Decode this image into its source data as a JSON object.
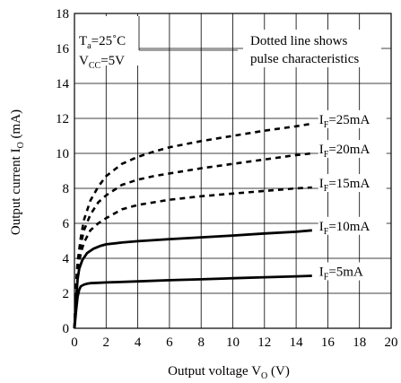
{
  "chart_data": {
    "type": "line",
    "title": "",
    "xlabel": "Output voltage V",
    "xlabel_sub": "O",
    "xlabel_unit": " (V)",
    "ylabel": "Output current I",
    "ylabel_sub": "O",
    "ylabel_unit": " (mA)",
    "xlim": [
      0,
      20
    ],
    "ylim": [
      0,
      18
    ],
    "xticks": [
      0,
      2,
      4,
      6,
      8,
      10,
      12,
      14,
      16,
      18,
      20
    ],
    "yticks": [
      0,
      2,
      4,
      6,
      8,
      10,
      12,
      14,
      16,
      18
    ],
    "grid": true,
    "conditions": {
      "ta_main": "T",
      "ta_sub": "a",
      "ta_value": "=25˚C",
      "vcc_main": "V",
      "vcc_sub": "CC",
      "vcc_value": "=5V"
    },
    "note_line1": "Dotted line shows",
    "note_line2": "pulse characteristics",
    "series": [
      {
        "label_main": "I",
        "label_sub": "F",
        "label_value": "=25mA",
        "style": "dotted",
        "x": [
          0,
          0.1,
          0.2,
          0.4,
          0.6,
          1,
          1.5,
          2,
          3,
          4,
          5,
          6,
          8,
          10,
          12,
          14,
          15
        ],
        "y": [
          0,
          2.5,
          3.8,
          5.2,
          6.2,
          7.3,
          8.1,
          8.7,
          9.4,
          9.8,
          10.1,
          10.35,
          10.7,
          11.0,
          11.3,
          11.55,
          11.7
        ]
      },
      {
        "label_main": "I",
        "label_sub": "F",
        "label_value": "=20mA",
        "style": "dotted",
        "x": [
          0,
          0.1,
          0.2,
          0.4,
          0.6,
          1,
          1.5,
          2,
          3,
          4,
          5,
          6,
          8,
          10,
          12,
          14,
          15
        ],
        "y": [
          0,
          2.3,
          3.6,
          4.8,
          5.6,
          6.5,
          7.2,
          7.6,
          8.2,
          8.5,
          8.7,
          8.85,
          9.15,
          9.4,
          9.65,
          9.9,
          10.0
        ]
      },
      {
        "label_main": "I",
        "label_sub": "F",
        "label_value": "=15mA",
        "style": "dotted",
        "x": [
          0,
          0.1,
          0.2,
          0.4,
          0.6,
          1,
          1.5,
          2,
          3,
          4,
          5,
          6,
          8,
          10,
          12,
          14,
          15
        ],
        "y": [
          0,
          2.1,
          3.3,
          4.3,
          4.9,
          5.6,
          6.0,
          6.3,
          6.8,
          7.05,
          7.2,
          7.35,
          7.55,
          7.7,
          7.85,
          8.0,
          8.05
        ]
      },
      {
        "label_main": "I",
        "label_sub": "F",
        "label_value": "=10mA",
        "style": "solid",
        "x": [
          0,
          0.1,
          0.2,
          0.3,
          0.5,
          0.8,
          1.2,
          1.6,
          2,
          3,
          4,
          6,
          8,
          10,
          12,
          14,
          15
        ],
        "y": [
          0,
          1.6,
          2.8,
          3.4,
          3.9,
          4.3,
          4.55,
          4.7,
          4.8,
          4.9,
          4.98,
          5.1,
          5.2,
          5.3,
          5.42,
          5.52,
          5.6
        ]
      },
      {
        "label_main": "I",
        "label_sub": "F",
        "label_value": "=5mA",
        "style": "solid",
        "x": [
          0,
          0.1,
          0.2,
          0.3,
          0.4,
          0.6,
          0.8,
          1,
          1.5,
          2,
          4,
          6,
          8,
          10,
          12,
          14,
          15
        ],
        "y": [
          0,
          1.0,
          1.8,
          2.2,
          2.4,
          2.5,
          2.55,
          2.58,
          2.6,
          2.62,
          2.68,
          2.75,
          2.8,
          2.86,
          2.92,
          2.97,
          3.0
        ]
      }
    ]
  }
}
